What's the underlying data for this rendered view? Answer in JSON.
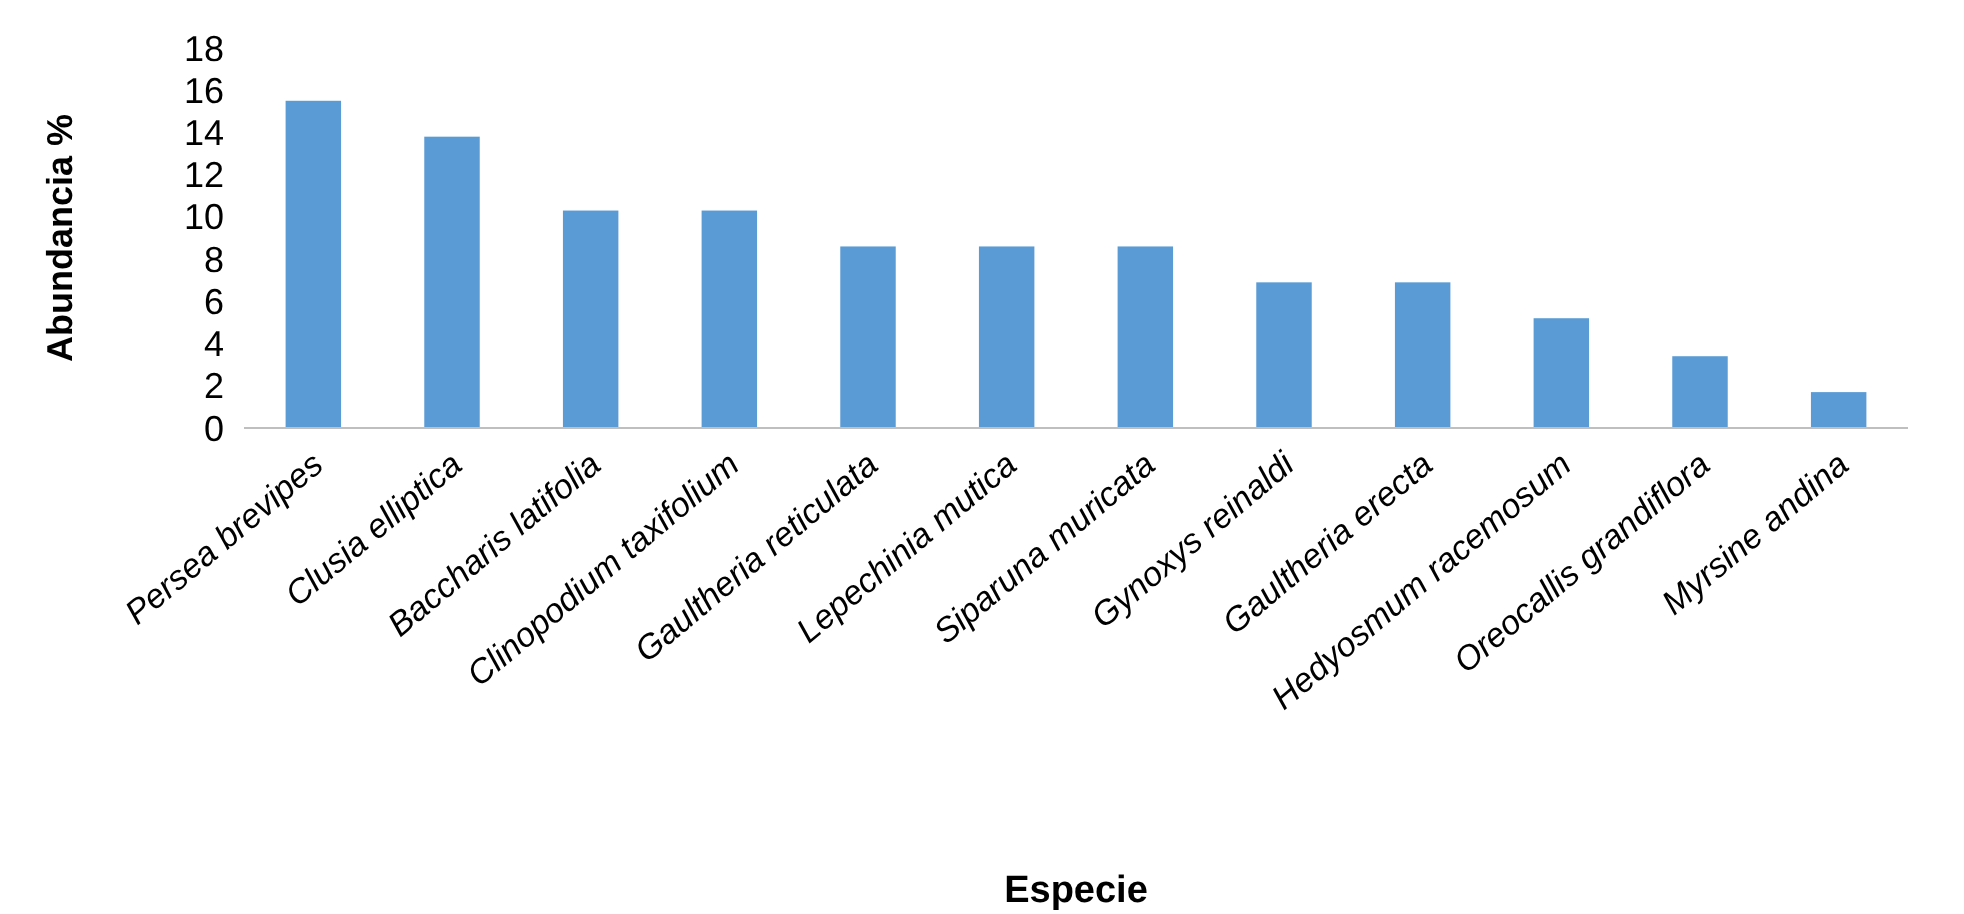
{
  "chart_data": {
    "type": "bar",
    "xlabel": "Especie",
    "ylabel": "Abundancia %",
    "categories": [
      "Persea brevipes",
      "Clusia elliptica",
      "Baccharis latifolia",
      "Clinopodium taxifolium",
      "Gaultheria reticulata",
      "Lepechinia mutica",
      "Siparuna muricata",
      "Gynoxys reinaldi",
      "Gaultheria erecta",
      "Hedyosmum racemosum",
      "Oreocallis grandiflora",
      "Myrsine andina"
    ],
    "series": [
      {
        "color": "#5b9bd5",
        "values": [
          15.5,
          13.8,
          10.3,
          10.3,
          8.6,
          8.6,
          8.6,
          6.9,
          6.9,
          5.2,
          3.4,
          1.7
        ]
      }
    ],
    "ylim": [
      0,
      18
    ],
    "yticks": [
      0,
      2,
      4,
      6,
      8,
      10,
      12,
      14,
      16,
      18
    ],
    "grid": false
  }
}
